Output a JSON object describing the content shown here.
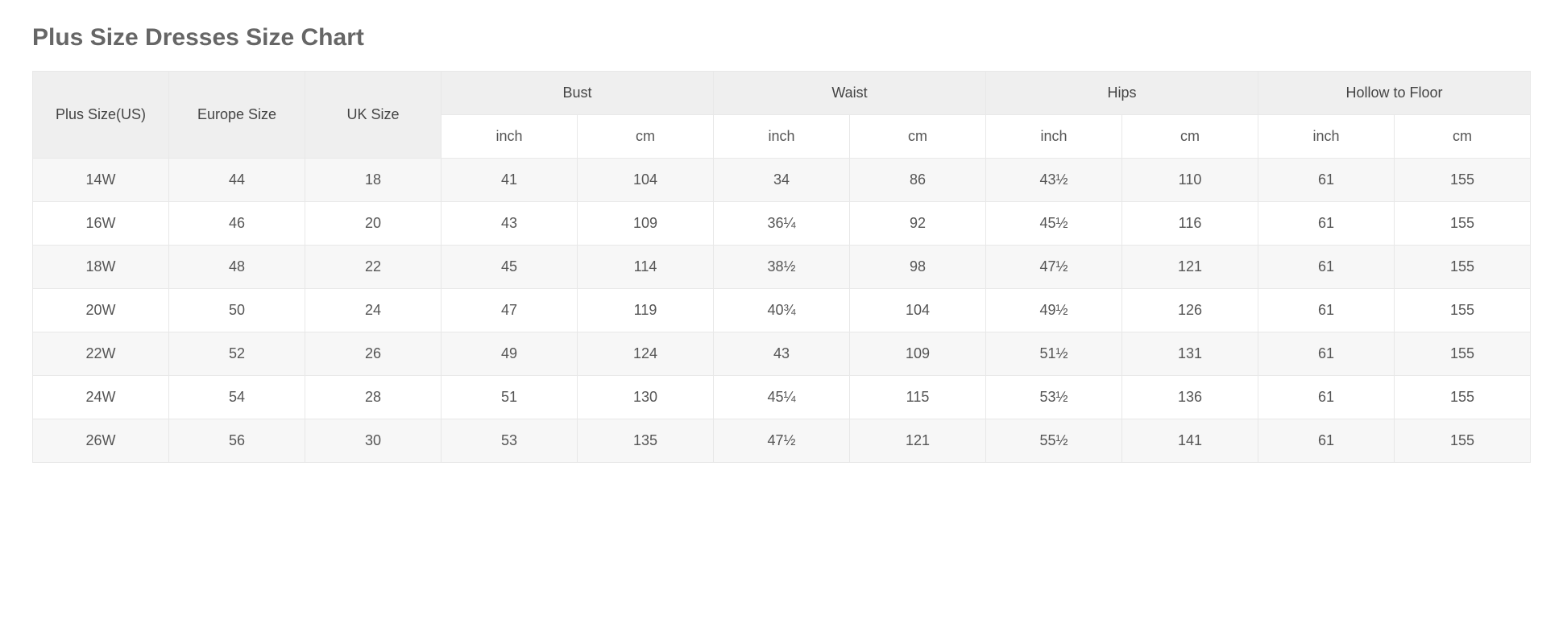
{
  "title": "Plus Size Dresses Size Chart",
  "table": {
    "type": "table",
    "background_color": "#ffffff",
    "alt_row_color": "#f7f7f7",
    "header_bg": "#efefef",
    "border_color": "#e8e8e8",
    "text_color": "#555555",
    "font_size_pt": 14,
    "main_headers": {
      "plus_size": "Plus Size(US)",
      "europe": "Europe Size",
      "uk": "UK Size",
      "bust": "Bust",
      "waist": "Waist",
      "hips": "Hips",
      "hollow": "Hollow to Floor"
    },
    "sub_headers": {
      "inch": "inch",
      "cm": "cm"
    },
    "rows": [
      {
        "plus_size": "14W",
        "europe": "44",
        "uk": "18",
        "bust_in": "41",
        "bust_cm": "104",
        "waist_in": "34",
        "waist_cm": "86",
        "hips_in": "43½",
        "hips_cm": "110",
        "hollow_in": "61",
        "hollow_cm": "155"
      },
      {
        "plus_size": "16W",
        "europe": "46",
        "uk": "20",
        "bust_in": "43",
        "bust_cm": "109",
        "waist_in": "36¼",
        "waist_cm": "92",
        "hips_in": "45½",
        "hips_cm": "116",
        "hollow_in": "61",
        "hollow_cm": "155"
      },
      {
        "plus_size": "18W",
        "europe": "48",
        "uk": "22",
        "bust_in": "45",
        "bust_cm": "114",
        "waist_in": "38½",
        "waist_cm": "98",
        "hips_in": "47½",
        "hips_cm": "121",
        "hollow_in": "61",
        "hollow_cm": "155"
      },
      {
        "plus_size": "20W",
        "europe": "50",
        "uk": "24",
        "bust_in": "47",
        "bust_cm": "119",
        "waist_in": "40¾",
        "waist_cm": "104",
        "hips_in": "49½",
        "hips_cm": "126",
        "hollow_in": "61",
        "hollow_cm": "155"
      },
      {
        "plus_size": "22W",
        "europe": "52",
        "uk": "26",
        "bust_in": "49",
        "bust_cm": "124",
        "waist_in": "43",
        "waist_cm": "109",
        "hips_in": "51½",
        "hips_cm": "131",
        "hollow_in": "61",
        "hollow_cm": "155"
      },
      {
        "plus_size": "24W",
        "europe": "54",
        "uk": "28",
        "bust_in": "51",
        "bust_cm": "130",
        "waist_in": "45¼",
        "waist_cm": "115",
        "hips_in": "53½",
        "hips_cm": "136",
        "hollow_in": "61",
        "hollow_cm": "155"
      },
      {
        "plus_size": "26W",
        "europe": "56",
        "uk": "30",
        "bust_in": "53",
        "bust_cm": "135",
        "waist_in": "47½",
        "waist_cm": "121",
        "hips_in": "55½",
        "hips_cm": "141",
        "hollow_in": "61",
        "hollow_cm": "155"
      }
    ]
  }
}
